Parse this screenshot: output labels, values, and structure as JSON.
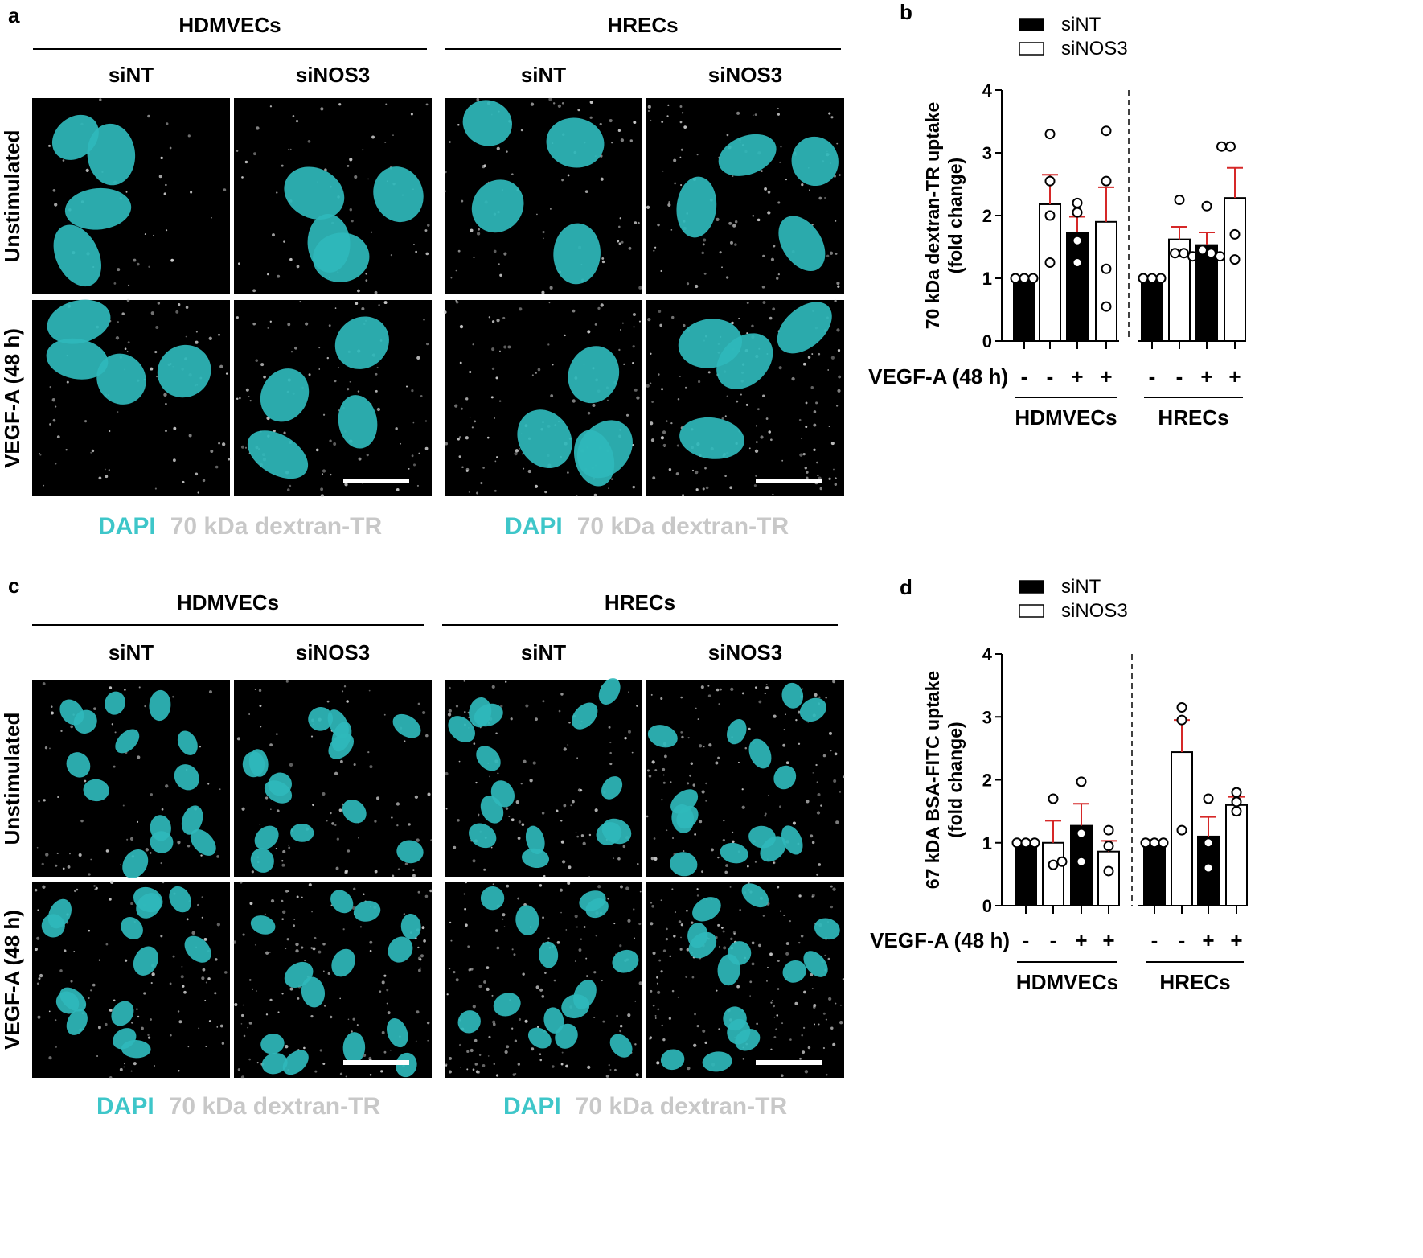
{
  "panel_a": {
    "letter": "a",
    "groups": [
      "HDMVECs",
      "HRECs"
    ],
    "conditions": [
      "siNT",
      "siNOS3",
      "siNT",
      "siNOS3"
    ],
    "rows": [
      "Unstimulated",
      "VEGF-A (48 h)"
    ],
    "legend": [
      {
        "label": "DAPI",
        "color": "#3ec6c9"
      },
      {
        "label": "70 kDa dextran-TR",
        "color": "#c8c8c8"
      }
    ]
  },
  "panel_c": {
    "letter": "c",
    "groups": [
      "HDMVECs",
      "HRECs"
    ],
    "conditions": [
      "siNT",
      "siNOS3",
      "siNT",
      "siNOS3"
    ],
    "rows": [
      "Unstimulated",
      "VEGF-A (48 h)"
    ],
    "legend": [
      {
        "label": "DAPI",
        "color": "#3ec6c9"
      },
      {
        "label": "70 kDa dextran-TR",
        "color": "#c8c8c8"
      }
    ]
  },
  "nucleus_color": "#2fb8bb",
  "chart_data": [
    {
      "letter": "b",
      "type": "bar",
      "ylabel_line1": "70 kDa dextran-TR uptake",
      "ylabel_line2": "(fold change)",
      "ylim": [
        0,
        4
      ],
      "yticks": [
        "0",
        "1",
        "2",
        "3",
        "4"
      ],
      "legend_placement": "top",
      "series": [
        {
          "name": "siNT",
          "fill": "#000000"
        },
        {
          "name": "siNOS3",
          "fill": "#ffffff"
        }
      ],
      "treatment_label": "VEGF-A (48 h)",
      "treatment_marks": [
        "-",
        "-",
        "+",
        "+",
        "-",
        "-",
        "+",
        "+"
      ],
      "groups": [
        "HDMVECs",
        "HRECs"
      ],
      "bars": [
        {
          "group": "HDMVECs",
          "series": "siNT",
          "vegf": "-",
          "value": 1.0,
          "error": 0.0,
          "points": [
            1.0,
            1.0,
            1.0
          ]
        },
        {
          "group": "HDMVECs",
          "series": "siNOS3",
          "vegf": "-",
          "value": 2.18,
          "error": 0.47,
          "points": [
            3.3,
            2.55,
            2.0,
            1.25
          ]
        },
        {
          "group": "HDMVECs",
          "series": "siNT",
          "vegf": "+",
          "value": 1.73,
          "error": 0.25,
          "points": [
            2.2,
            2.05,
            1.6,
            1.25
          ]
        },
        {
          "group": "HDMVECs",
          "series": "siNOS3",
          "vegf": "+",
          "value": 1.9,
          "error": 0.55,
          "points": [
            3.35,
            2.55,
            1.15,
            0.55
          ]
        },
        {
          "group": "HRECs",
          "series": "siNT",
          "vegf": "-",
          "value": 1.0,
          "error": 0.0,
          "points": [
            1.0,
            1.0,
            1.0
          ]
        },
        {
          "group": "HRECs",
          "series": "siNOS3",
          "vegf": "-",
          "value": 1.62,
          "error": 0.2,
          "points": [
            2.25,
            1.4,
            1.4,
            1.35
          ]
        },
        {
          "group": "HRECs",
          "series": "siNT",
          "vegf": "+",
          "value": 1.53,
          "error": 0.2,
          "points": [
            2.15,
            1.45,
            1.4,
            1.35
          ]
        },
        {
          "group": "HRECs",
          "series": "siNOS3",
          "vegf": "+",
          "value": 2.28,
          "error": 0.48,
          "points": [
            3.1,
            3.1,
            1.7,
            1.3
          ]
        }
      ]
    },
    {
      "letter": "d",
      "type": "bar",
      "ylabel_line1": "67 kDA BSA-FITC uptake",
      "ylabel_line2": "(fold change)",
      "ylim": [
        0,
        4
      ],
      "yticks": [
        "0",
        "1",
        "2",
        "3",
        "4"
      ],
      "legend_placement": "top",
      "series": [
        {
          "name": "siNT",
          "fill": "#000000"
        },
        {
          "name": "siNOS3",
          "fill": "#ffffff"
        }
      ],
      "treatment_label": "VEGF-A (48 h)",
      "treatment_marks": [
        "-",
        "-",
        "+",
        "+",
        "-",
        "-",
        "+",
        "+"
      ],
      "groups": [
        "HDMVECs",
        "HRECs"
      ],
      "bars": [
        {
          "group": "HDMVECs",
          "series": "siNT",
          "vegf": "-",
          "value": 1.0,
          "error": 0.0,
          "points": [
            1.0,
            1.0,
            1.0
          ]
        },
        {
          "group": "HDMVECs",
          "series": "siNOS3",
          "vegf": "-",
          "value": 1.0,
          "error": 0.35,
          "points": [
            1.7,
            0.65,
            0.7
          ]
        },
        {
          "group": "HDMVECs",
          "series": "siNT",
          "vegf": "+",
          "value": 1.27,
          "error": 0.35,
          "points": [
            1.97,
            1.15,
            0.7
          ]
        },
        {
          "group": "HDMVECs",
          "series": "siNOS3",
          "vegf": "+",
          "value": 0.86,
          "error": 0.17,
          "points": [
            1.2,
            0.95,
            0.55
          ]
        },
        {
          "group": "HRECs",
          "series": "siNT",
          "vegf": "-",
          "value": 1.0,
          "error": 0.0,
          "points": [
            1.0,
            1.0,
            1.0
          ]
        },
        {
          "group": "HRECs",
          "series": "siNOS3",
          "vegf": "-",
          "value": 2.44,
          "error": 0.51,
          "points": [
            3.15,
            2.95,
            1.2
          ]
        },
        {
          "group": "HRECs",
          "series": "siNT",
          "vegf": "+",
          "value": 1.1,
          "error": 0.31,
          "points": [
            1.7,
            1.0,
            0.6
          ]
        },
        {
          "group": "HRECs",
          "series": "siNOS3",
          "vegf": "+",
          "value": 1.6,
          "error": 0.13,
          "points": [
            1.8,
            1.65,
            1.5
          ]
        }
      ]
    }
  ]
}
